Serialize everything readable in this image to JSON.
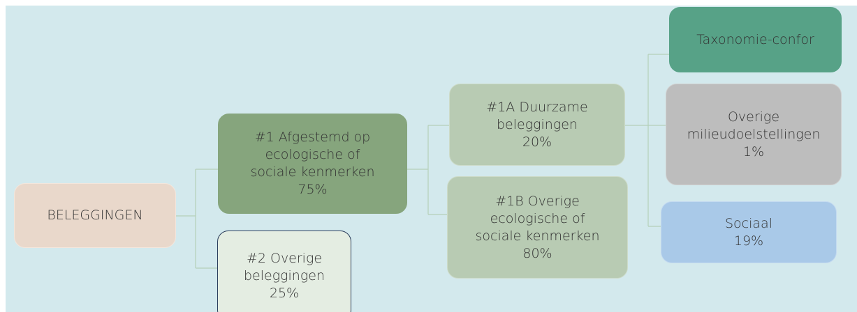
{
  "nodes": [
    {
      "lines": [
        "BELEGGINGEN"
      ]
    },
    {
      "lines": [
        "#1 Afgestemd op",
        "ecologische of",
        "sociale kenmerken",
        "75%"
      ]
    },
    {
      "lines": [
        "#2 Overige",
        "beleggingen",
        "25%"
      ]
    },
    {
      "lines": [
        "#1A Duurzame",
        "beleggingen",
        "20%"
      ]
    },
    {
      "lines": [
        "#1B Overige",
        "ecologische of",
        "sociale kenmerken",
        "80%"
      ]
    },
    {
      "lines": [
        "Taxonomie-confor"
      ]
    },
    {
      "lines": [
        "Overige",
        "milieudoelstellingen",
        "1%"
      ]
    },
    {
      "lines": [
        "Sociaal",
        "19%"
      ]
    }
  ]
}
